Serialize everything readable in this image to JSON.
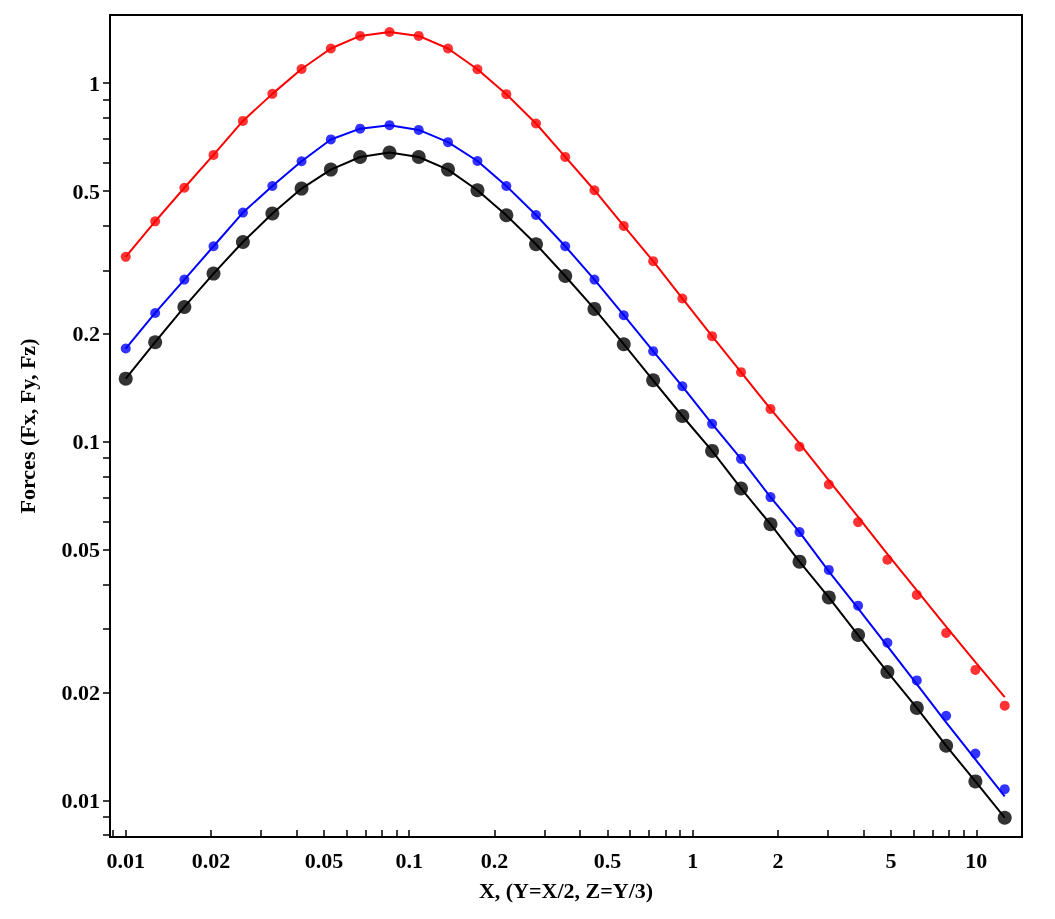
{
  "chart_data": {
    "type": "scatter",
    "xlabel": "X, (Y=X/2, Z=Y/3)",
    "ylabel": "Forces (Fx, Fy, Fz)",
    "log": "xy",
    "xlim": [
      0.0088,
      14.5
    ],
    "ylim": [
      0.0079,
      1.55
    ],
    "xticks": [
      {
        "value": 0.009,
        "label": null
      },
      0.01,
      0.02,
      {
        "value": 0.03,
        "label": null
      },
      {
        "value": 0.04,
        "label": null
      },
      0.05,
      {
        "value": 0.06,
        "label": null
      },
      {
        "value": 0.07,
        "label": null
      },
      {
        "value": 0.08,
        "label": null
      },
      {
        "value": 0.09,
        "label": null
      },
      0.1,
      0.2,
      {
        "value": 0.3,
        "label": null
      },
      {
        "value": 0.4,
        "label": null
      },
      0.5,
      {
        "value": 0.6,
        "label": null
      },
      {
        "value": 0.7,
        "label": null
      },
      {
        "value": 0.8,
        "label": null
      },
      {
        "value": 0.9,
        "label": null
      },
      1,
      2,
      {
        "value": 3,
        "label": null
      },
      {
        "value": 4,
        "label": null
      },
      5,
      {
        "value": 6,
        "label": null
      },
      {
        "value": 7,
        "label": null
      },
      {
        "value": 8,
        "label": null
      },
      {
        "value": 9,
        "label": null
      },
      10
    ],
    "yticks": [
      {
        "value": 0.008,
        "label": null
      },
      {
        "value": 0.009,
        "label": null
      },
      0.01,
      0.02,
      {
        "value": 0.03,
        "label": null
      },
      {
        "value": 0.04,
        "label": null
      },
      0.05,
      {
        "value": 0.06,
        "label": null
      },
      {
        "value": 0.07,
        "label": null
      },
      {
        "value": 0.08,
        "label": null
      },
      {
        "value": 0.09,
        "label": null
      },
      0.1,
      0.2,
      {
        "value": 0.3,
        "label": null
      },
      {
        "value": 0.4,
        "label": null
      },
      0.5,
      {
        "value": 0.6,
        "label": null
      },
      {
        "value": 0.7,
        "label": null
      },
      {
        "value": 0.8,
        "label": null
      },
      {
        "value": 0.9,
        "label": null
      },
      1
    ],
    "x": [
      0.01,
      0.0127,
      0.0161,
      0.0204,
      0.0259,
      0.0329,
      0.0417,
      0.0529,
      0.0671,
      0.0852,
      0.108,
      0.137,
      0.174,
      0.22,
      0.28,
      0.355,
      0.45,
      0.571,
      0.725,
      0.919,
      1.17,
      1.48,
      1.88,
      2.38,
      3.02,
      3.83,
      4.86,
      6.17,
      7.83,
      9.93,
      12.6
    ],
    "series": [
      {
        "type": "line",
        "marker": "none",
        "color": "#000000",
        "values": [
          0.15,
          0.1895,
          0.2377,
          0.2945,
          0.3608,
          0.4331,
          0.5084,
          0.5744,
          0.6228,
          0.6405,
          0.6228,
          0.5744,
          0.5028,
          0.4283,
          0.3556,
          0.29,
          0.2347,
          0.1871,
          0.1484,
          0.118,
          0.0943,
          0.0741,
          0.0589,
          0.0463,
          0.0368,
          0.0289,
          0.0228,
          0.0181,
          0.0142,
          0.01129,
          0.00894
        ]
      },
      {
        "type": "line",
        "marker": "none",
        "color": "#0000ff",
        "values": [
          0.182,
          0.2287,
          0.2834,
          0.351,
          0.4358,
          0.517,
          0.606,
          0.697,
          0.747,
          0.764,
          0.741,
          0.685,
          0.607,
          0.517,
          0.429,
          0.351,
          0.2834,
          0.2254,
          0.1789,
          0.1428,
          0.1122,
          0.0896,
          0.0701,
          0.056,
          0.0435,
          0.0343,
          0.0269,
          0.0211,
          0.0165,
          0.013,
          0.01026
        ]
      },
      {
        "type": "line",
        "marker": "none",
        "color": "#ff0000",
        "values": [
          0.328,
          0.412,
          0.511,
          0.631,
          0.785,
          0.934,
          1.096,
          1.25,
          1.355,
          1.39,
          1.355,
          1.25,
          1.094,
          0.932,
          0.772,
          0.623,
          0.503,
          0.4,
          0.319,
          0.251,
          0.197,
          0.1564,
          0.1235,
          0.099,
          0.0781,
          0.0617,
          0.0486,
          0.0385,
          0.0305,
          0.0243,
          0.0194
        ]
      },
      {
        "marker": "circle",
        "color": "#000000",
        "values": [
          0.15,
          0.1895,
          0.2377,
          0.2945,
          0.3608,
          0.4331,
          0.5084,
          0.5744,
          0.6228,
          0.6405,
          0.6228,
          0.5744,
          0.5028,
          0.4283,
          0.3556,
          0.29,
          0.2347,
          0.1871,
          0.1484,
          0.118,
          0.0943,
          0.0741,
          0.0589,
          0.0463,
          0.0368,
          0.0289,
          0.0228,
          0.0181,
          0.0142,
          0.01129,
          0.00894
        ]
      },
      {
        "marker": "circle",
        "color": "#0000ff",
        "values": [
          0.182,
          0.2287,
          0.2834,
          0.351,
          0.4358,
          0.517,
          0.606,
          0.697,
          0.747,
          0.764,
          0.741,
          0.685,
          0.607,
          0.517,
          0.429,
          0.351,
          0.2834,
          0.2254,
          0.1789,
          0.1428,
          0.1122,
          0.0896,
          0.0701,
          0.056,
          0.0439,
          0.0349,
          0.0275,
          0.0216,
          0.0172,
          0.0135,
          0.01074
        ]
      },
      {
        "marker": "circle",
        "color": "#ff0000",
        "values": [
          0.328,
          0.412,
          0.511,
          0.631,
          0.785,
          0.934,
          1.096,
          1.25,
          1.355,
          1.39,
          1.355,
          1.25,
          1.094,
          0.932,
          0.772,
          0.623,
          0.503,
          0.4,
          0.319,
          0.251,
          0.197,
          0.1564,
          0.1235,
          0.0969,
          0.076,
          0.0597,
          0.0469,
          0.0374,
          0.0293,
          0.0231,
          0.01836
        ]
      }
    ]
  }
}
